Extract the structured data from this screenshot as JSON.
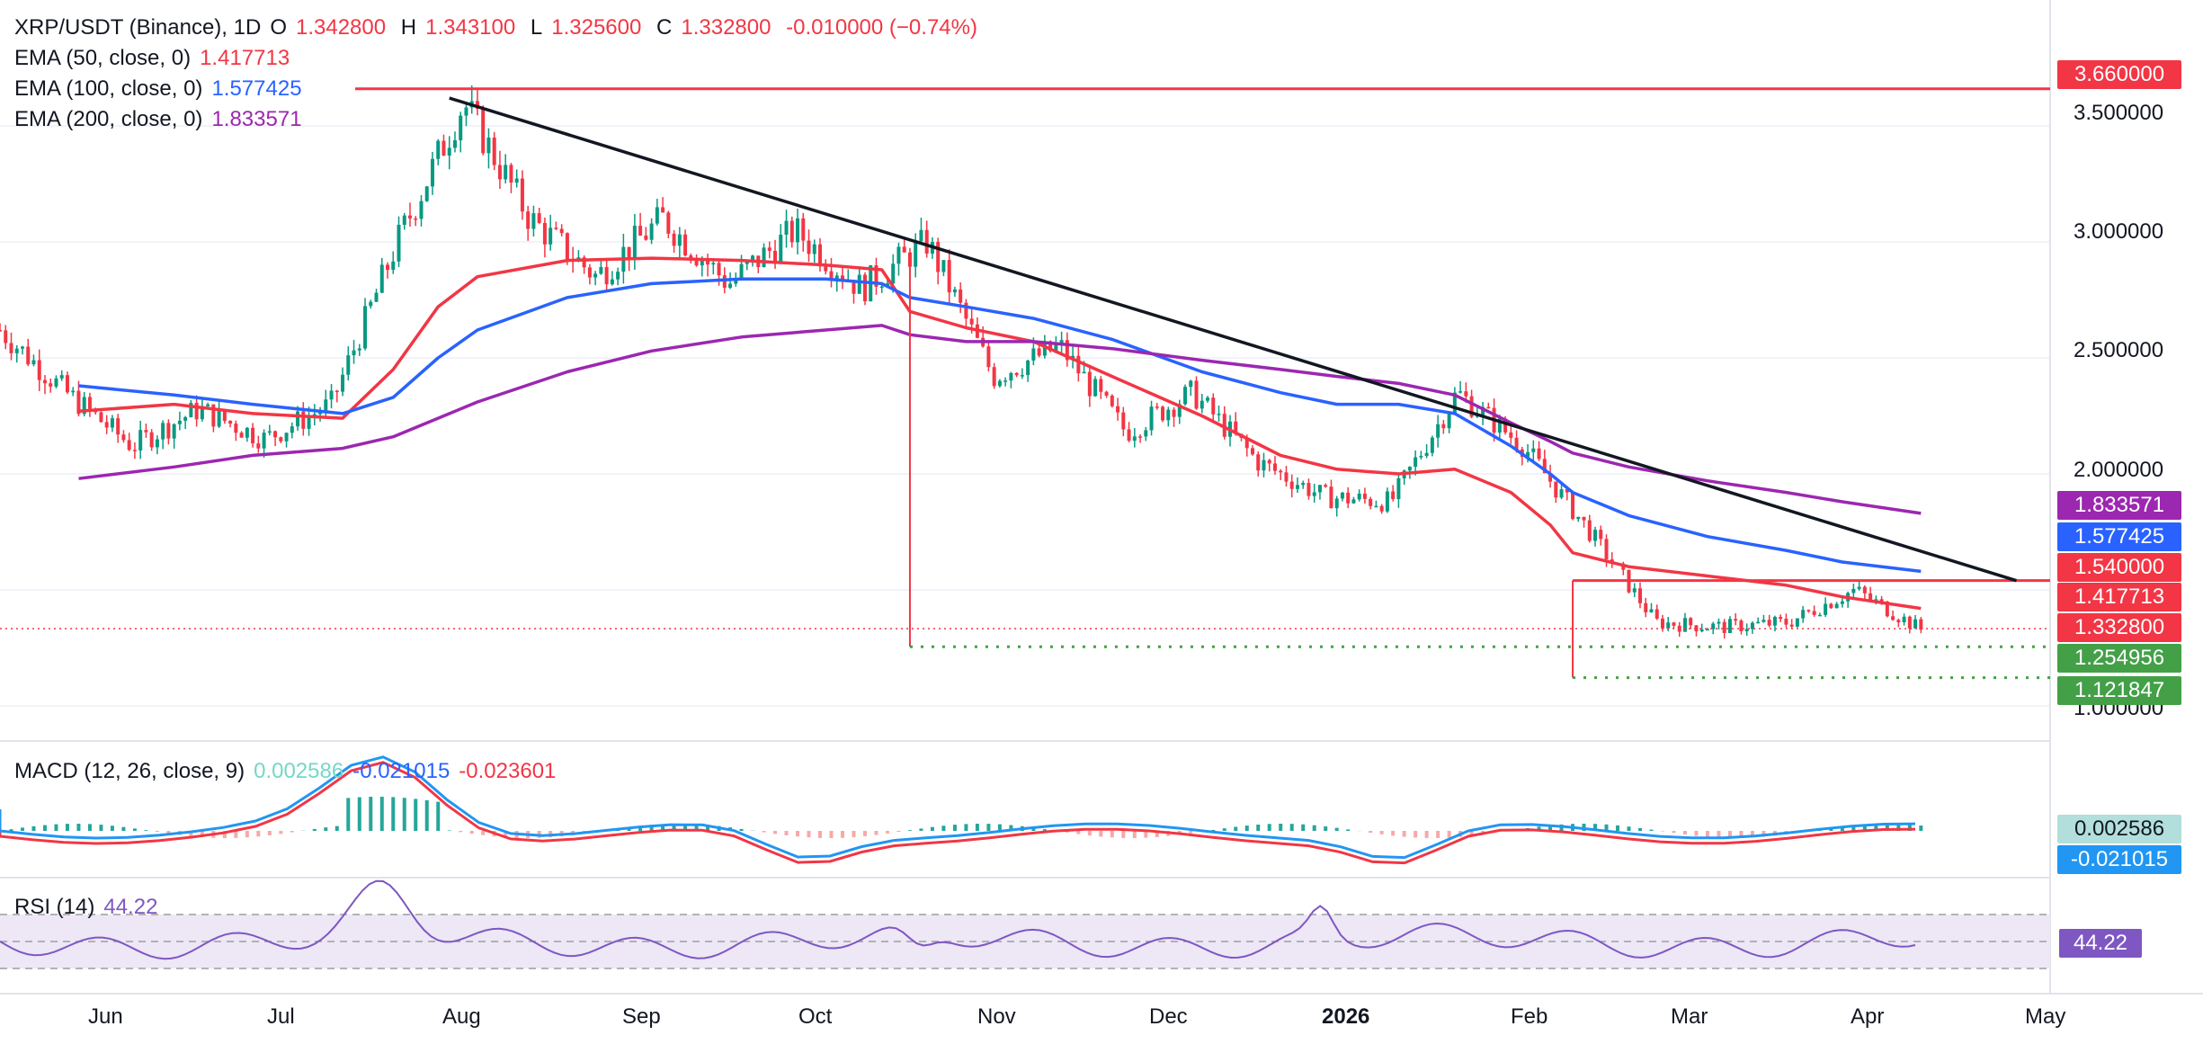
{
  "header": {
    "symbol": "XRP/USDT (Binance), 1D",
    "o_label": "O",
    "o": "1.342800",
    "h_label": "H",
    "h": "1.343100",
    "l_label": "L",
    "l": "1.325600",
    "c_label": "C",
    "c": "1.332800",
    "change": "-0.010000 (−0.74%)",
    "ema50_label": "EMA (50, close, 0)",
    "ema50_value": "1.417713",
    "ema100_label": "EMA (100, close, 0)",
    "ema100_value": "1.577425",
    "ema200_label": "EMA (200, close, 0)",
    "ema200_value": "1.833571"
  },
  "macd": {
    "label": "MACD (12, 26, close, 9)",
    "hist": "0.002586",
    "macd": "-0.021015",
    "signal": "-0.023601"
  },
  "rsi": {
    "label": "RSI (14)",
    "value": "44.22"
  },
  "price_scale": [
    "3.500000",
    "3.000000",
    "2.500000",
    "2.000000",
    "1.000000"
  ],
  "badges": {
    "resistance": "3.660000",
    "ema200": "1.833571",
    "ema100": "1.577425",
    "range_top": "1.540000",
    "ema50": "1.417713",
    "last": "1.332800",
    "support1": "1.254956",
    "support2": "1.121847",
    "macd_hist": "0.002586",
    "macd_line": "-0.021015",
    "rsi": "44.22"
  },
  "time_axis": [
    "Jun",
    "Jul",
    "Aug",
    "Sep",
    "Oct",
    "Nov",
    "Dec",
    "2026",
    "Feb",
    "Mar",
    "Apr",
    "May"
  ],
  "colors": {
    "up": "#089981",
    "down": "#f23645",
    "ema50": "#f23645",
    "ema100": "#2962ff",
    "ema200": "#9c27b0",
    "rsi": "#7e57c2",
    "macd": "#2196f3",
    "signal": "#f23645"
  },
  "chart_data": {
    "type": "line",
    "title": "XRP/USDT (Binance), 1D",
    "x": [
      "2025-05-15",
      "2025-06-01",
      "2025-06-15",
      "2025-07-01",
      "2025-07-10",
      "2025-07-18",
      "2025-07-25",
      "2025-08-10",
      "2025-08-25",
      "2025-09-10",
      "2025-09-25",
      "2025-10-05",
      "2025-10-10",
      "2025-10-20",
      "2025-11-01",
      "2025-11-15",
      "2025-12-01",
      "2025-12-15",
      "2025-12-25",
      "2026-01-05",
      "2026-01-15",
      "2026-01-25",
      "2026-02-01",
      "2026-02-05",
      "2026-02-15",
      "2026-03-01",
      "2026-03-15",
      "2026-03-25",
      "2026-04-08"
    ],
    "series": [
      {
        "name": "EMA (50, close, 0)",
        "values": [
          2.27,
          2.3,
          2.26,
          2.24,
          2.45,
          2.72,
          2.85,
          2.92,
          2.93,
          2.92,
          2.9,
          2.88,
          2.7,
          2.63,
          2.57,
          2.42,
          2.25,
          2.08,
          2.02,
          2.0,
          2.02,
          1.92,
          1.78,
          1.66,
          1.6,
          1.56,
          1.52,
          1.47,
          1.42
        ]
      },
      {
        "name": "EMA (100, close, 0)",
        "values": [
          2.38,
          2.34,
          2.3,
          2.26,
          2.33,
          2.5,
          2.62,
          2.76,
          2.82,
          2.84,
          2.84,
          2.82,
          2.76,
          2.72,
          2.67,
          2.58,
          2.44,
          2.35,
          2.3,
          2.3,
          2.26,
          2.12,
          2.0,
          1.92,
          1.82,
          1.73,
          1.67,
          1.62,
          1.58
        ]
      },
      {
        "name": "EMA (200, close, 0)",
        "values": [
          1.98,
          2.03,
          2.08,
          2.11,
          2.16,
          2.24,
          2.31,
          2.44,
          2.53,
          2.59,
          2.62,
          2.64,
          2.6,
          2.57,
          2.57,
          2.54,
          2.49,
          2.45,
          2.42,
          2.39,
          2.34,
          2.22,
          2.14,
          2.09,
          2.03,
          1.97,
          1.92,
          1.88,
          1.83
        ]
      }
    ],
    "close_path": [
      2.62,
      2.35,
      2.12,
      2.28,
      2.15,
      2.3,
      3.0,
      3.6,
      3.1,
      2.85,
      3.1,
      2.82,
      3.05,
      2.8,
      3.0,
      2.42,
      2.55,
      2.18,
      2.35,
      2.05,
      1.9,
      1.88,
      2.35,
      2.12,
      1.75,
      1.36,
      1.34,
      1.36,
      1.5,
      1.33
    ],
    "levels": {
      "resistance": 3.66,
      "range_top": 1.54,
      "support1": 1.254956,
      "support2": 1.121847,
      "last": 1.3328
    },
    "trendline": {
      "from": {
        "x": "2025-07-20",
        "y": 3.62
      },
      "to": {
        "x": "2026-04-25",
        "y": 1.54
      }
    },
    "ylim": [
      0.95,
      3.75
    ]
  }
}
